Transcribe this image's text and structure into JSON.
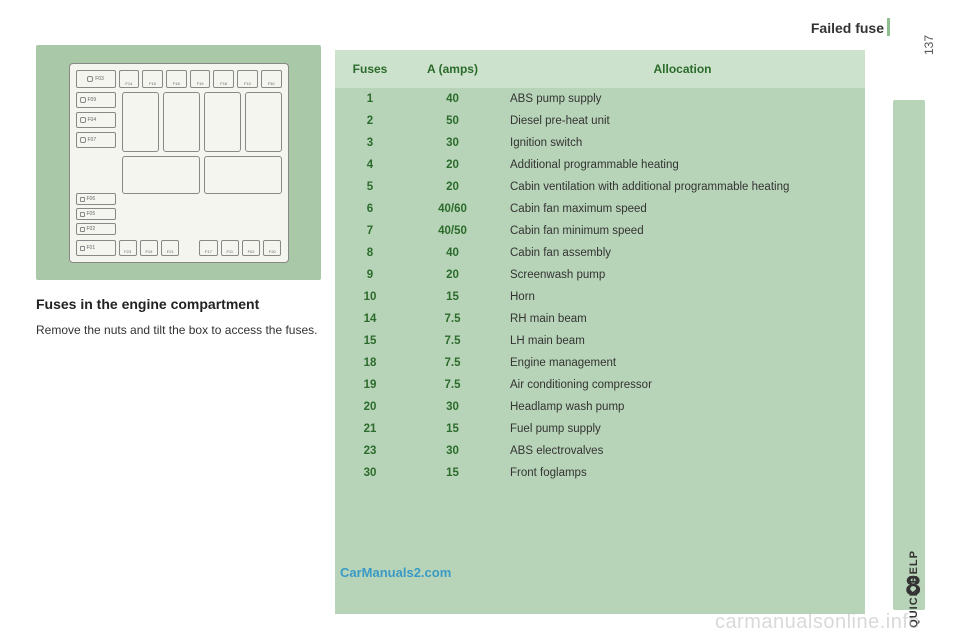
{
  "header": {
    "title": "Failed fuse",
    "page_number": "137"
  },
  "sidebar": {
    "label": "QUICK HELP",
    "chapter": "8",
    "bg_color": "#b8d4b8"
  },
  "left": {
    "section_heading": "Fuses in the engine compartment",
    "body": "Remove the nuts and tilt the box to access the fuses.",
    "diagram": {
      "bg_color": "#a8c8a8",
      "top_labels": [
        "F03",
        "F14",
        "F15",
        "F18",
        "F19",
        "F16",
        "F10",
        "F30"
      ],
      "left_top_labels": [
        "F09",
        "F04",
        "F07"
      ],
      "left_bot_labels": [
        "F06",
        "F05",
        "F02",
        "F01"
      ],
      "bot_labels": [
        "F23",
        "F19",
        "F21",
        "",
        "F17",
        "F11",
        "F02",
        "F20"
      ]
    }
  },
  "table": {
    "header_bg": "#cde2cd",
    "body_bg": "#b8d4b8",
    "accent_color": "#2b6b2b",
    "columns": [
      "Fuses",
      "A (amps)",
      "Allocation"
    ],
    "rows": [
      {
        "fuse": "1",
        "amps": "40",
        "alloc": "ABS pump supply"
      },
      {
        "fuse": "2",
        "amps": "50",
        "alloc": "Diesel pre-heat unit"
      },
      {
        "fuse": "3",
        "amps": "30",
        "alloc": "Ignition switch"
      },
      {
        "fuse": "4",
        "amps": "20",
        "alloc": "Additional programmable heating"
      },
      {
        "fuse": "5",
        "amps": "20",
        "alloc": "Cabin ventilation with additional programmable heating"
      },
      {
        "fuse": "6",
        "amps": "40/60",
        "alloc": "Cabin fan maximum speed"
      },
      {
        "fuse": "7",
        "amps": "40/50",
        "alloc": "Cabin fan minimum speed"
      },
      {
        "fuse": "8",
        "amps": "40",
        "alloc": "Cabin fan assembly"
      },
      {
        "fuse": "9",
        "amps": "20",
        "alloc": "Screenwash pump"
      },
      {
        "fuse": "10",
        "amps": "15",
        "alloc": "Horn"
      },
      {
        "fuse": "14",
        "amps": "7.5",
        "alloc": "RH main beam"
      },
      {
        "fuse": "15",
        "amps": "7.5",
        "alloc": "LH main beam"
      },
      {
        "fuse": "18",
        "amps": "7.5",
        "alloc": "Engine management"
      },
      {
        "fuse": "19",
        "amps": "7.5",
        "alloc": "Air conditioning compressor"
      },
      {
        "fuse": "20",
        "amps": "30",
        "alloc": "Headlamp wash pump"
      },
      {
        "fuse": "21",
        "amps": "15",
        "alloc": "Fuel pump supply"
      },
      {
        "fuse": "23",
        "amps": "30",
        "alloc": "ABS electrovalves"
      },
      {
        "fuse": "30",
        "amps": "15",
        "alloc": "Front foglamps"
      }
    ]
  },
  "watermarks": {
    "w1": "CarManuals2.com",
    "w2": "carmanualsonline.info"
  }
}
